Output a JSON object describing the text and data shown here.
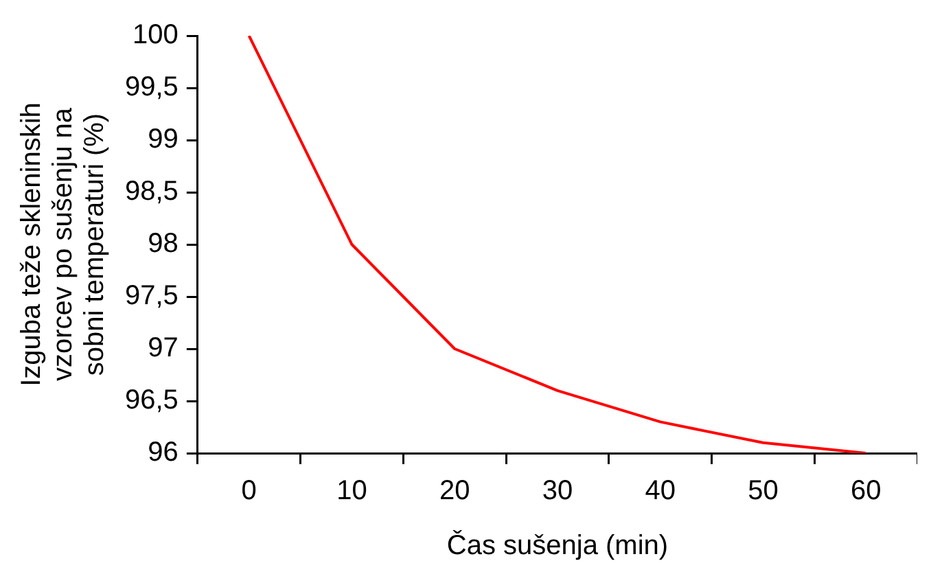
{
  "chart_data": {
    "type": "line",
    "xlabel": "Čas sušenja (min)",
    "ylabel": "Izguba teže skleninskih vzorcev po sušenju na sobni temperaturi (%)",
    "categories": [
      "0",
      "10",
      "20",
      "30",
      "40",
      "50",
      "60"
    ],
    "series": [
      {
        "color": "#ff0000",
        "values": [
          100,
          98,
          97,
          96.6,
          96.3,
          96.1,
          96.0
        ]
      }
    ],
    "ylim": [
      96,
      100
    ],
    "yticks": [
      96,
      {
        "value": 96.5,
        "label": "96,5"
      },
      97,
      {
        "value": 97.5,
        "label": "97,5"
      },
      98,
      {
        "value": 98.5,
        "label": "98,5"
      },
      99,
      {
        "value": 99.5,
        "label": "99,5"
      },
      100
    ],
    "grid": false,
    "legend": false,
    "marker": "none",
    "line_style": "solid"
  }
}
